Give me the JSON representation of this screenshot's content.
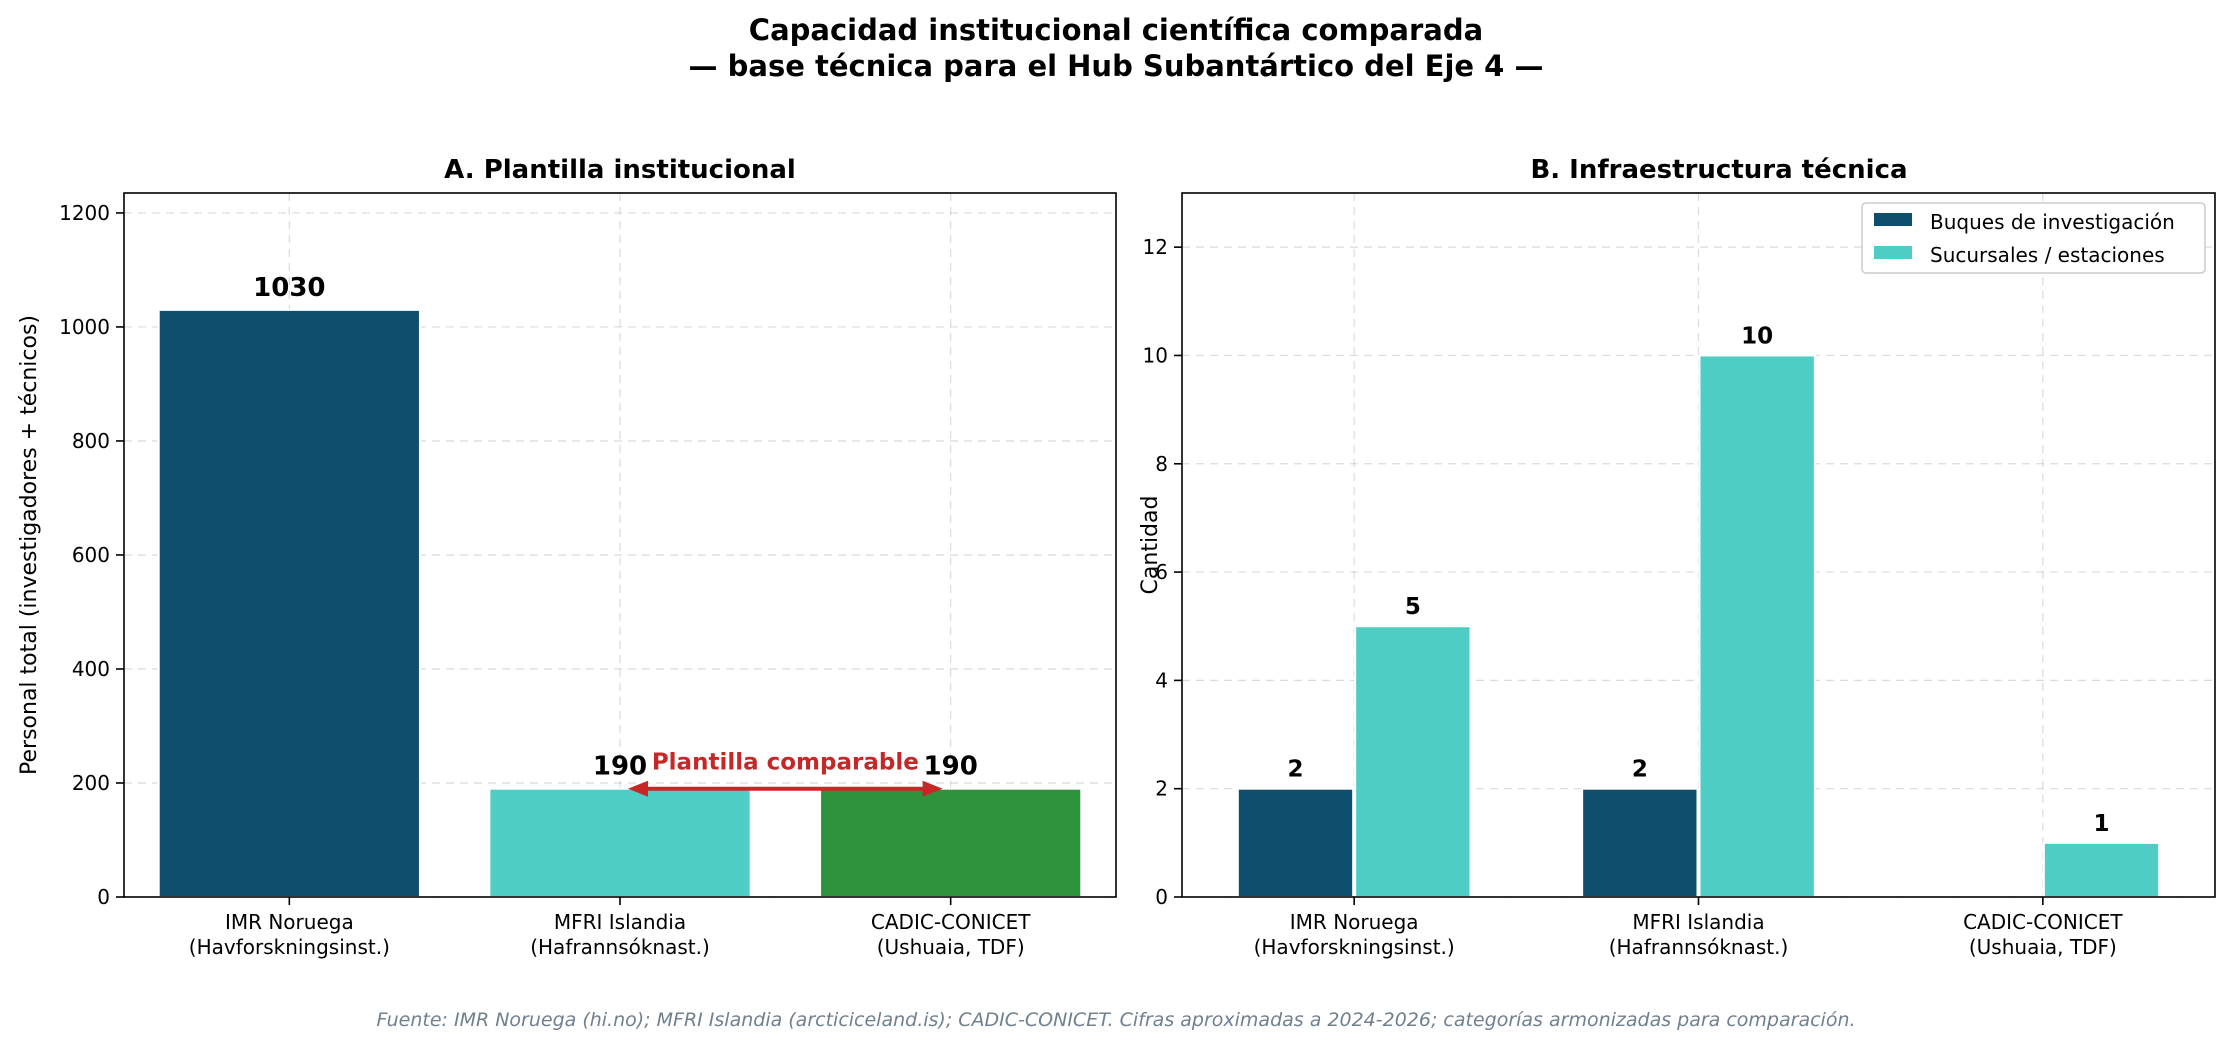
{
  "figure": {
    "title_line1": "Capacidad institucional científica comparada",
    "title_line2": "— base técnica para el Hub Subantártico del Eje 4 —",
    "source": "Fuente: IMR Noruega (hi.no); MFRI Islandia (arcticiceland.is); CADIC-CONICET. Cifras aproximadas a 2024-2026; categorías armonizadas para comparación."
  },
  "colors": {
    "navy": "#0d4f6c",
    "teal": "#4ecdc4",
    "green": "#2e933c",
    "annotation": "#c62828"
  },
  "chart_data": [
    {
      "type": "bar",
      "title": "A. Plantilla institucional",
      "xlabel": "",
      "ylabel": "Personal total (investigadores + técnicos)",
      "categories": [
        [
          "IMR Noruega",
          "(Havforskningsinst.)"
        ],
        [
          "MFRI Islandia",
          "(Hafrannsóknast.)"
        ],
        [
          "CADIC-CONICET",
          "(Ushuaia, TDF)"
        ]
      ],
      "values": [
        1030,
        190,
        190
      ],
      "bar_colors": [
        "#0d4f6c",
        "#4ecdc4",
        "#2e933c"
      ],
      "ylim": [
        0,
        1235
      ],
      "yticks": [
        0,
        200,
        400,
        600,
        800,
        1000,
        1200
      ],
      "grid": true,
      "annotation": {
        "text": "Plantilla comparable",
        "from_category": 1,
        "to_category": 2,
        "y": 190
      }
    },
    {
      "type": "bar",
      "title": "B. Infraestructura técnica",
      "xlabel": "",
      "ylabel": "Cantidad",
      "categories": [
        [
          "IMR Noruega",
          "(Havforskningsinst.)"
        ],
        [
          "MFRI Islandia",
          "(Hafrannsóknast.)"
        ],
        [
          "CADIC-CONICET",
          "(Ushuaia, TDF)"
        ]
      ],
      "series": [
        {
          "name": "Buques de investigación",
          "values": [
            2,
            2,
            0
          ],
          "color": "#0d4f6c"
        },
        {
          "name": "Sucursales / estaciones",
          "values": [
            5,
            10,
            1
          ],
          "color": "#4ecdc4"
        }
      ],
      "ylim": [
        0,
        13
      ],
      "yticks": [
        0,
        2,
        4,
        6,
        8,
        10,
        12
      ],
      "grid": true,
      "legend": "top-right"
    }
  ]
}
